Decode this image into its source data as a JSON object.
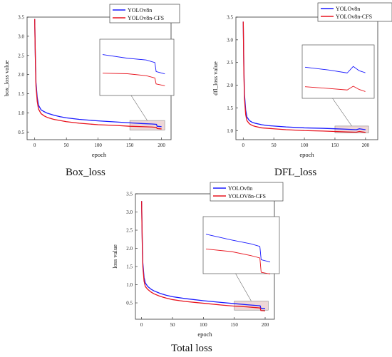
{
  "chart_data": [
    {
      "type": "line",
      "caption": "Box_loss",
      "xlabel": "epoch",
      "ylabel": "box_loss value",
      "xlim": [
        -12,
        215
      ],
      "ylim": [
        0.3,
        3.5
      ],
      "xticks": [
        0,
        50,
        100,
        150,
        200
      ],
      "yticks": [
        0.5,
        1.0,
        1.5,
        2.0,
        2.5,
        3.0,
        3.5
      ],
      "ytick_labels": [
        "0.5",
        "1.0",
        "1.5",
        "2.0",
        "2.5",
        "3.0",
        "3.5"
      ],
      "legend": "top-right",
      "zoom_window": {
        "x": [
          150,
          205
        ],
        "y": [
          0.55,
          0.8
        ]
      },
      "series": [
        {
          "name": "YOLOv8n",
          "color": "#1a1aff",
          "x": [
            0,
            1,
            2,
            4,
            6,
            10,
            15,
            20,
            30,
            40,
            50,
            70,
            100,
            130,
            150,
            170,
            185,
            192,
            193,
            200
          ],
          "y": [
            3.45,
            2.5,
            1.8,
            1.4,
            1.2,
            1.08,
            1.03,
            0.99,
            0.94,
            0.9,
            0.87,
            0.83,
            0.79,
            0.76,
            0.74,
            0.72,
            0.71,
            0.7,
            0.65,
            0.64
          ]
        },
        {
          "name": "YOLOv8n-CFS",
          "color": "#e8141e",
          "x": [
            0,
            1,
            2,
            4,
            6,
            10,
            15,
            20,
            30,
            40,
            50,
            70,
            100,
            130,
            150,
            170,
            185,
            192,
            193,
            200
          ],
          "y": [
            3.45,
            2.45,
            1.7,
            1.3,
            1.1,
            0.98,
            0.92,
            0.88,
            0.83,
            0.8,
            0.77,
            0.73,
            0.69,
            0.67,
            0.65,
            0.64,
            0.63,
            0.62,
            0.59,
            0.58
          ]
        }
      ]
    },
    {
      "type": "line",
      "caption": "DFL_loss",
      "xlabel": "epoch",
      "ylabel": "dfl_loss value",
      "xlim": [
        -12,
        220
      ],
      "ylim": [
        0.8,
        3.5
      ],
      "xticks": [
        0,
        50,
        100,
        150,
        200
      ],
      "yticks": [
        1.0,
        1.5,
        2.0,
        2.5,
        3.0,
        3.5
      ],
      "ytick_labels": [
        "1.0",
        "1.5",
        "2.0",
        "2.5",
        "3.0",
        "3.5"
      ],
      "legend": "top-right",
      "zoom_window": {
        "x": [
          150,
          205
        ],
        "y": [
          0.95,
          1.1
        ]
      },
      "series": [
        {
          "name": "YOLOv8n",
          "color": "#1a1aff",
          "x": [
            0,
            1,
            2,
            4,
            6,
            10,
            15,
            20,
            30,
            40,
            50,
            70,
            100,
            130,
            150,
            170,
            185,
            190,
            195,
            200
          ],
          "y": [
            3.4,
            2.4,
            1.8,
            1.45,
            1.3,
            1.22,
            1.18,
            1.16,
            1.13,
            1.11,
            1.1,
            1.08,
            1.06,
            1.05,
            1.04,
            1.03,
            1.02,
            1.04,
            1.03,
            1.02
          ]
        },
        {
          "name": "YOLOv8n-CFS",
          "color": "#e8141e",
          "x": [
            0,
            1,
            2,
            4,
            6,
            10,
            15,
            20,
            30,
            40,
            50,
            70,
            100,
            130,
            150,
            170,
            185,
            190,
            195,
            200
          ],
          "y": [
            3.4,
            2.3,
            1.7,
            1.35,
            1.22,
            1.15,
            1.11,
            1.09,
            1.06,
            1.05,
            1.04,
            1.02,
            1.0,
            0.99,
            0.98,
            0.97,
            0.965,
            0.98,
            0.97,
            0.96
          ]
        }
      ]
    },
    {
      "type": "line",
      "caption": "Total loss",
      "xlabel": "epoch",
      "ylabel": "loss value",
      "xlim": [
        -10,
        215
      ],
      "ylim": [
        0.05,
        3.5
      ],
      "xticks": [
        0,
        50,
        100,
        150,
        200
      ],
      "yticks": [
        0.5,
        1.0,
        1.5,
        2.0,
        2.5,
        3.0,
        3.5
      ],
      "ytick_labels": [
        "0.5",
        "1.0",
        "1.5",
        "2.0",
        "2.5",
        "3.0",
        "3.5"
      ],
      "legend": "top-right",
      "zoom_window": {
        "x": [
          150,
          205
        ],
        "y": [
          0.3,
          0.55
        ]
      },
      "series": [
        {
          "name": "YOLOv8n",
          "color": "#1a1aff",
          "x": [
            0,
            1,
            2,
            4,
            6,
            10,
            15,
            20,
            30,
            40,
            50,
            70,
            100,
            130,
            150,
            170,
            185,
            192,
            193,
            200
          ],
          "y": [
            3.3,
            2.3,
            1.6,
            1.2,
            1.05,
            0.95,
            0.88,
            0.83,
            0.76,
            0.71,
            0.67,
            0.62,
            0.56,
            0.51,
            0.48,
            0.45,
            0.43,
            0.42,
            0.35,
            0.34
          ]
        },
        {
          "name": "YOLOV8n-CFS",
          "color": "#e8141e",
          "x": [
            0,
            1,
            2,
            4,
            6,
            10,
            15,
            20,
            30,
            40,
            50,
            70,
            100,
            130,
            150,
            170,
            185,
            192,
            193,
            200
          ],
          "y": [
            3.3,
            2.2,
            1.5,
            1.1,
            0.95,
            0.87,
            0.8,
            0.75,
            0.68,
            0.63,
            0.59,
            0.54,
            0.49,
            0.44,
            0.41,
            0.39,
            0.37,
            0.36,
            0.29,
            0.28
          ]
        }
      ]
    }
  ]
}
